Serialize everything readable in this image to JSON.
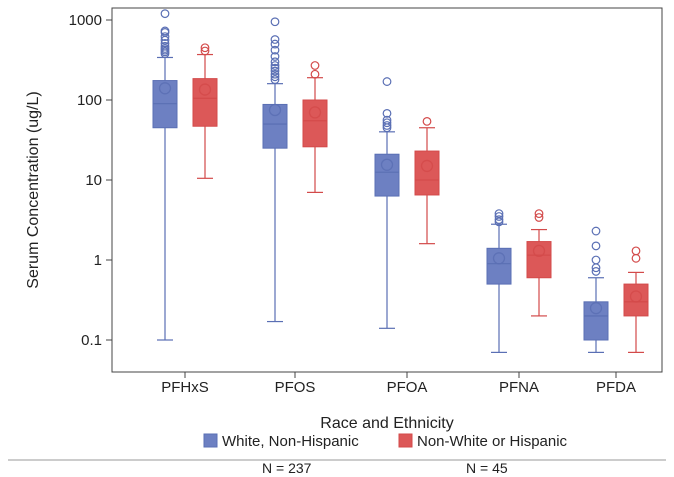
{
  "chart_data": {
    "type": "box",
    "xlabel": "Race and Ethnicity",
    "ylabel": "Serum Concentration (ug/L)",
    "yscale": "log",
    "ylim": [
      0.06,
      1250
    ],
    "yticks": [
      {
        "value": 0.1,
        "label": "0.1"
      },
      {
        "value": 1,
        "label": "1"
      },
      {
        "value": 10,
        "label": "10"
      },
      {
        "value": 100,
        "label": "100"
      },
      {
        "value": 1000,
        "label": "1000"
      }
    ],
    "categories": [
      "PFHxS",
      "PFOS",
      "PFOA",
      "PFNA",
      "PFDA"
    ],
    "grid": false,
    "legend_position": "bottom",
    "series": [
      {
        "name": "White, Non-Hispanic",
        "color": "#5a6fb4",
        "fill": "#6d80c2",
        "boxes": [
          {
            "min": 0.1,
            "q1": 45,
            "median": 90,
            "q3": 175,
            "max": 340,
            "mean": 140,
            "outliers": [
              1200,
              730,
              700,
              620,
              560,
              510,
              470,
              440,
              420,
              400,
              380
            ]
          },
          {
            "min": 0.17,
            "q1": 25,
            "median": 50,
            "q3": 88,
            "max": 160,
            "mean": 75,
            "outliers": [
              950,
              570,
              500,
              420,
              350,
              300,
              270,
              250,
              230,
              210,
              195,
              180
            ]
          },
          {
            "min": 0.14,
            "q1": 6.3,
            "median": 12.5,
            "q3": 21,
            "max": 40,
            "mean": 15.5,
            "outliers": [
              170,
              68,
              56,
              52,
              48,
              45
            ]
          },
          {
            "min": 0.07,
            "q1": 0.5,
            "median": 0.9,
            "q3": 1.4,
            "max": 2.8,
            "mean": 1.05,
            "outliers": [
              3.8,
              3.5,
              3.2,
              3.0
            ]
          },
          {
            "min": 0.07,
            "q1": 0.1,
            "median": 0.2,
            "q3": 0.3,
            "max": 0.6,
            "mean": 0.25,
            "outliers": [
              2.3,
              1.5,
              1.0,
              0.8,
              0.72
            ]
          }
        ]
      },
      {
        "name": "Non-White or Hispanic",
        "color": "#d34a4a",
        "fill": "#dc5858",
        "boxes": [
          {
            "min": 10.5,
            "q1": 47,
            "median": 105,
            "q3": 185,
            "max": 370,
            "mean": 135,
            "outliers": [
              450,
              410
            ]
          },
          {
            "min": 7,
            "q1": 26,
            "median": 55,
            "q3": 100,
            "max": 190,
            "mean": 70,
            "outliers": [
              270,
              210
            ]
          },
          {
            "min": 1.6,
            "q1": 6.5,
            "median": 10,
            "q3": 23,
            "max": 45,
            "mean": 15,
            "outliers": [
              54
            ]
          },
          {
            "min": 0.2,
            "q1": 0.6,
            "median": 1.15,
            "q3": 1.7,
            "max": 2.4,
            "mean": 1.3,
            "outliers": [
              3.8,
              3.4
            ]
          },
          {
            "min": 0.07,
            "q1": 0.2,
            "median": 0.3,
            "q3": 0.5,
            "max": 0.7,
            "mean": 0.35,
            "outliers": [
              1.3,
              1.05
            ]
          }
        ]
      }
    ]
  },
  "footer": {
    "n_white": "N = 237",
    "n_nonwhite": "N = 45"
  }
}
